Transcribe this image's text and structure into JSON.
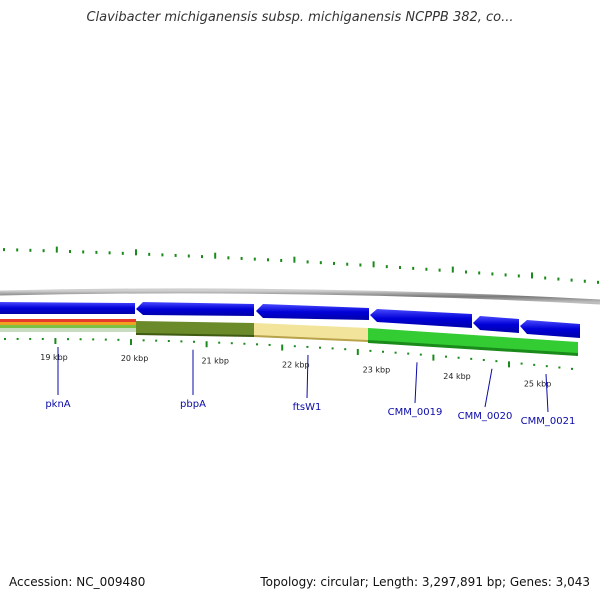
{
  "title": "Clavibacter michiganensis subsp. michiganensis NCPPB 382, co...",
  "footer": {
    "accession": "Accession: NC_009480",
    "summary": "Topology: circular; Length: 3,297,891 bp; Genes: 3,043"
  },
  "ticks": [
    {
      "kb": 19,
      "label": "19 kbp"
    },
    {
      "kb": 20,
      "label": "20 kbp"
    },
    {
      "kb": 21,
      "label": "21 kbp"
    },
    {
      "kb": 22,
      "label": "22 kbp"
    },
    {
      "kb": 23,
      "label": "23 kbp"
    },
    {
      "kb": 24,
      "label": "24 kbp"
    },
    {
      "kb": 25,
      "label": "25 kbp"
    }
  ],
  "genes": [
    {
      "name": "pknA",
      "kb": 19.0
    },
    {
      "name": "pbpA",
      "kb": 20.7
    },
    {
      "name": "ftsW1",
      "kb": 22.1
    },
    {
      "name": "CMM_0019",
      "kb": 23.6
    },
    {
      "name": "CMM_0020",
      "kb": 24.4
    },
    {
      "name": "CMM_0021",
      "kb": 25.1
    }
  ],
  "colors": {
    "cds": "#0a0adc",
    "backbone": "#8a8a8a",
    "gc_skew_green": "#33cc33",
    "olive": "#6b8a2a",
    "pale_yellow": "#f2e49a",
    "tick": "#1a8a1a",
    "label": "#0a0aa8"
  }
}
